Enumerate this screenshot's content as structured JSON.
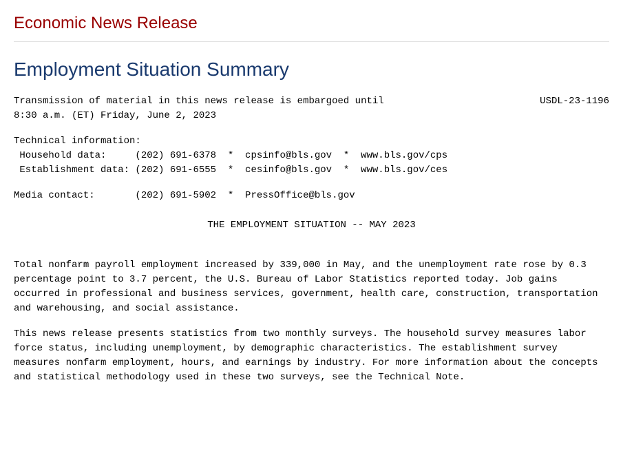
{
  "colors": {
    "section_title": "#990000",
    "page_title": "#1a3a6e",
    "body_text": "#000000",
    "divider": "#e0e0e0",
    "background": "#ffffff"
  },
  "typography": {
    "section_title_fontsize": 24,
    "page_title_fontsize": 28,
    "mono_fontsize": 14,
    "heading_font": "Arial, sans-serif",
    "body_font": "Courier New, monospace"
  },
  "section_title": "Economic News Release",
  "page_title": "Employment Situation Summary",
  "embargo_line1": "Transmission of material in this news release is embargoed until",
  "embargo_line2": "8:30 a.m. (ET) Friday, June 2, 2023",
  "doc_id": "USDL-23-1196",
  "tech_info_header": "Technical information:",
  "household_line": " Household data:     (202) 691-6378  *  cpsinfo@bls.gov  *  www.bls.gov/cps",
  "establishment_line": " Establishment data: (202) 691-6555  *  cesinfo@bls.gov  *  www.bls.gov/ces",
  "media_line": "Media contact:       (202) 691-5902  *  PressOffice@bls.gov",
  "release_title": "THE EMPLOYMENT SITUATION -- MAY 2023",
  "para1": "Total nonfarm payroll employment increased by 339,000 in May, and the unemployment rate rose by 0.3 percentage point to 3.7 percent, the U.S. Bureau of Labor Statistics reported today. Job gains occurred in professional and business services, government, health care, construction, transportation and warehousing, and social assistance.",
  "para2": "This news release presents statistics from two monthly surveys. The household survey measures labor force status, including unemployment, by demographic characteristics. The establishment survey measures nonfarm employment, hours, and earnings by industry. For more information about the concepts and statistical methodology used in these two surveys, see the Technical Note."
}
